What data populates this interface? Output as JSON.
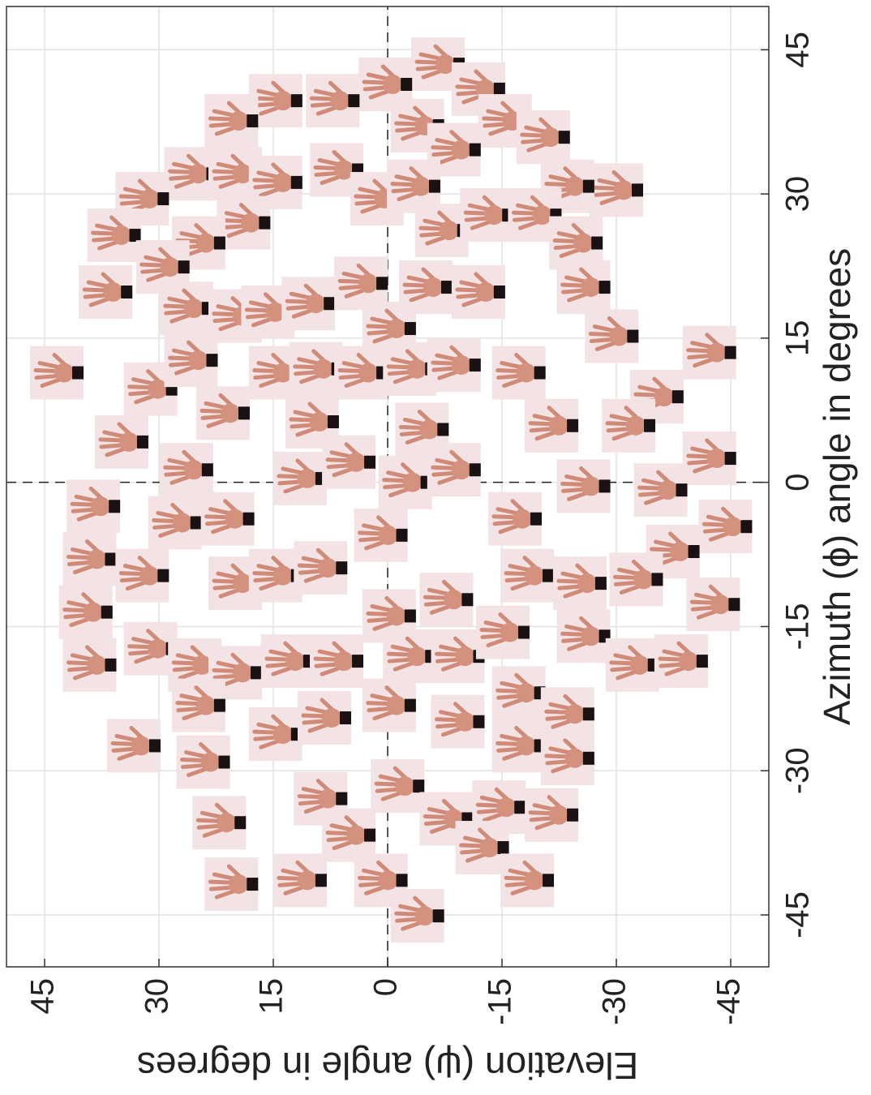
{
  "chart_data": {
    "type": "scatter",
    "x_label": "Azimuth (ϕ) angle in degrees",
    "y_label": "Elevation (ψ) angle in degrees",
    "xlim": [
      -50.4,
      49.5
    ],
    "ylim": [
      -50,
      50
    ],
    "xticks": [
      -45,
      -30,
      -15,
      0,
      15,
      30,
      45
    ],
    "yticks": [
      -45,
      -30,
      -15,
      0,
      15,
      30,
      45
    ],
    "grid": true,
    "zero_lines": true,
    "x": [
      43.5,
      41.4,
      39.7,
      39.7,
      37.6,
      40.9,
      37.6,
      37.1,
      34.6,
      35.9,
      32.1,
      32.1,
      31.2,
      32.5,
      29.5,
      30.8,
      30.4,
      30.8,
      29.5,
      25.7,
      27.0,
      24.9,
      22.4,
      26.2,
      27.8,
      27.8,
      24.9,
      19.8,
      18.1,
      17.3,
      17.7,
      18.6,
      20.7,
      20.3,
      19.8,
      20.3,
      15.2,
      16.0,
      11.4,
      9.7,
      12.7,
      11.4,
      11.8,
      11.4,
      11.8,
      12.2,
      11.4,
      13.5,
      8.9,
      4.2,
      7.2,
      6.3,
      5.5,
      5.9,
      5.9,
      1.3,
      0.4,
      2.1,
      0,
      1.3,
      -0.4,
      2.5,
      -0.8,
      -2.5,
      -4.2,
      -3.8,
      -5.5,
      -3.8,
      -4.6,
      -7.2,
      -8.0,
      -9.7,
      -10.5,
      -9.7,
      -8.9,
      -13.5,
      -13.9,
      -12.2,
      -9.7,
      -10.5,
      -10.1,
      -12.7,
      -19.0,
      -17.3,
      -19.0,
      -19.8,
      -18.6,
      -18.6,
      -18.1,
      -18.1,
      -15.6,
      -16.0,
      -19.0,
      -18.6,
      -27.4,
      -23.2,
      -26.2,
      -24.5,
      -23.2,
      -24.9,
      -21.9,
      -24.1,
      -27.4,
      -28.7,
      -29.1,
      -32.9,
      -31.6,
      -35.0,
      -33.8,
      -34.6,
      -35.4,
      -36.7,
      -38.0,
      -41.4,
      -41.8,
      -41.4,
      -41.4,
      -45.1
    ],
    "values": [
      -6.6,
      0.3,
      7.2,
      14.7,
      20.5,
      -11.9,
      -15.4,
      -3.9,
      -8.7,
      -20.4,
      25.8,
      20.0,
      14.7,
      6.7,
      1.4,
      -3.4,
      -30.0,
      -23.6,
      32.2,
      35.9,
      18.9,
      24.8,
      29.5,
      -7.1,
      -13.0,
      -19.3,
      -24.7,
      37.0,
      26.4,
      20.0,
      15.7,
      10.4,
      3.5,
      -5.0,
      -11.9,
      -25.7,
      -29.4,
      -0.2,
      43.4,
      31.1,
      25.8,
      14.7,
      9.4,
      3.5,
      -2.9,
      -8.7,
      -17.2,
      -42.2,
      -35.3,
      34.9,
      21.6,
      9.9,
      -4.5,
      -21.5,
      -31.6,
      26.4,
      11.5,
      5.1,
      -2.3,
      -8.7,
      -25.7,
      -42.2,
      -35.8,
      38.6,
      27.9,
      21.0,
      0.9,
      -16.7,
      -44.3,
      -37.4,
      39.1,
      32.2,
      20.0,
      14.7,
      8.8,
      39.6,
      -0.2,
      -7.7,
      -18.3,
      -25.2,
      -32.6,
      -42.7,
      39.1,
      31.1,
      25.3,
      20.0,
      13.1,
      6.7,
      -2.9,
      -9.2,
      -15.1,
      -25.7,
      -32.1,
      -38.5,
      33.3,
      24.8,
      14.7,
      8.3,
      -0.2,
      -9.2,
      -17.2,
      -23.6,
      -17.2,
      -23.6,
      24.2,
      8.8,
      -1.3,
      -7.7,
      -14.6,
      -21.5,
      22.1,
      5.1,
      -12.4,
      -18.3,
      20.5,
      11.5,
      0.9,
      -3.9
    ]
  }
}
